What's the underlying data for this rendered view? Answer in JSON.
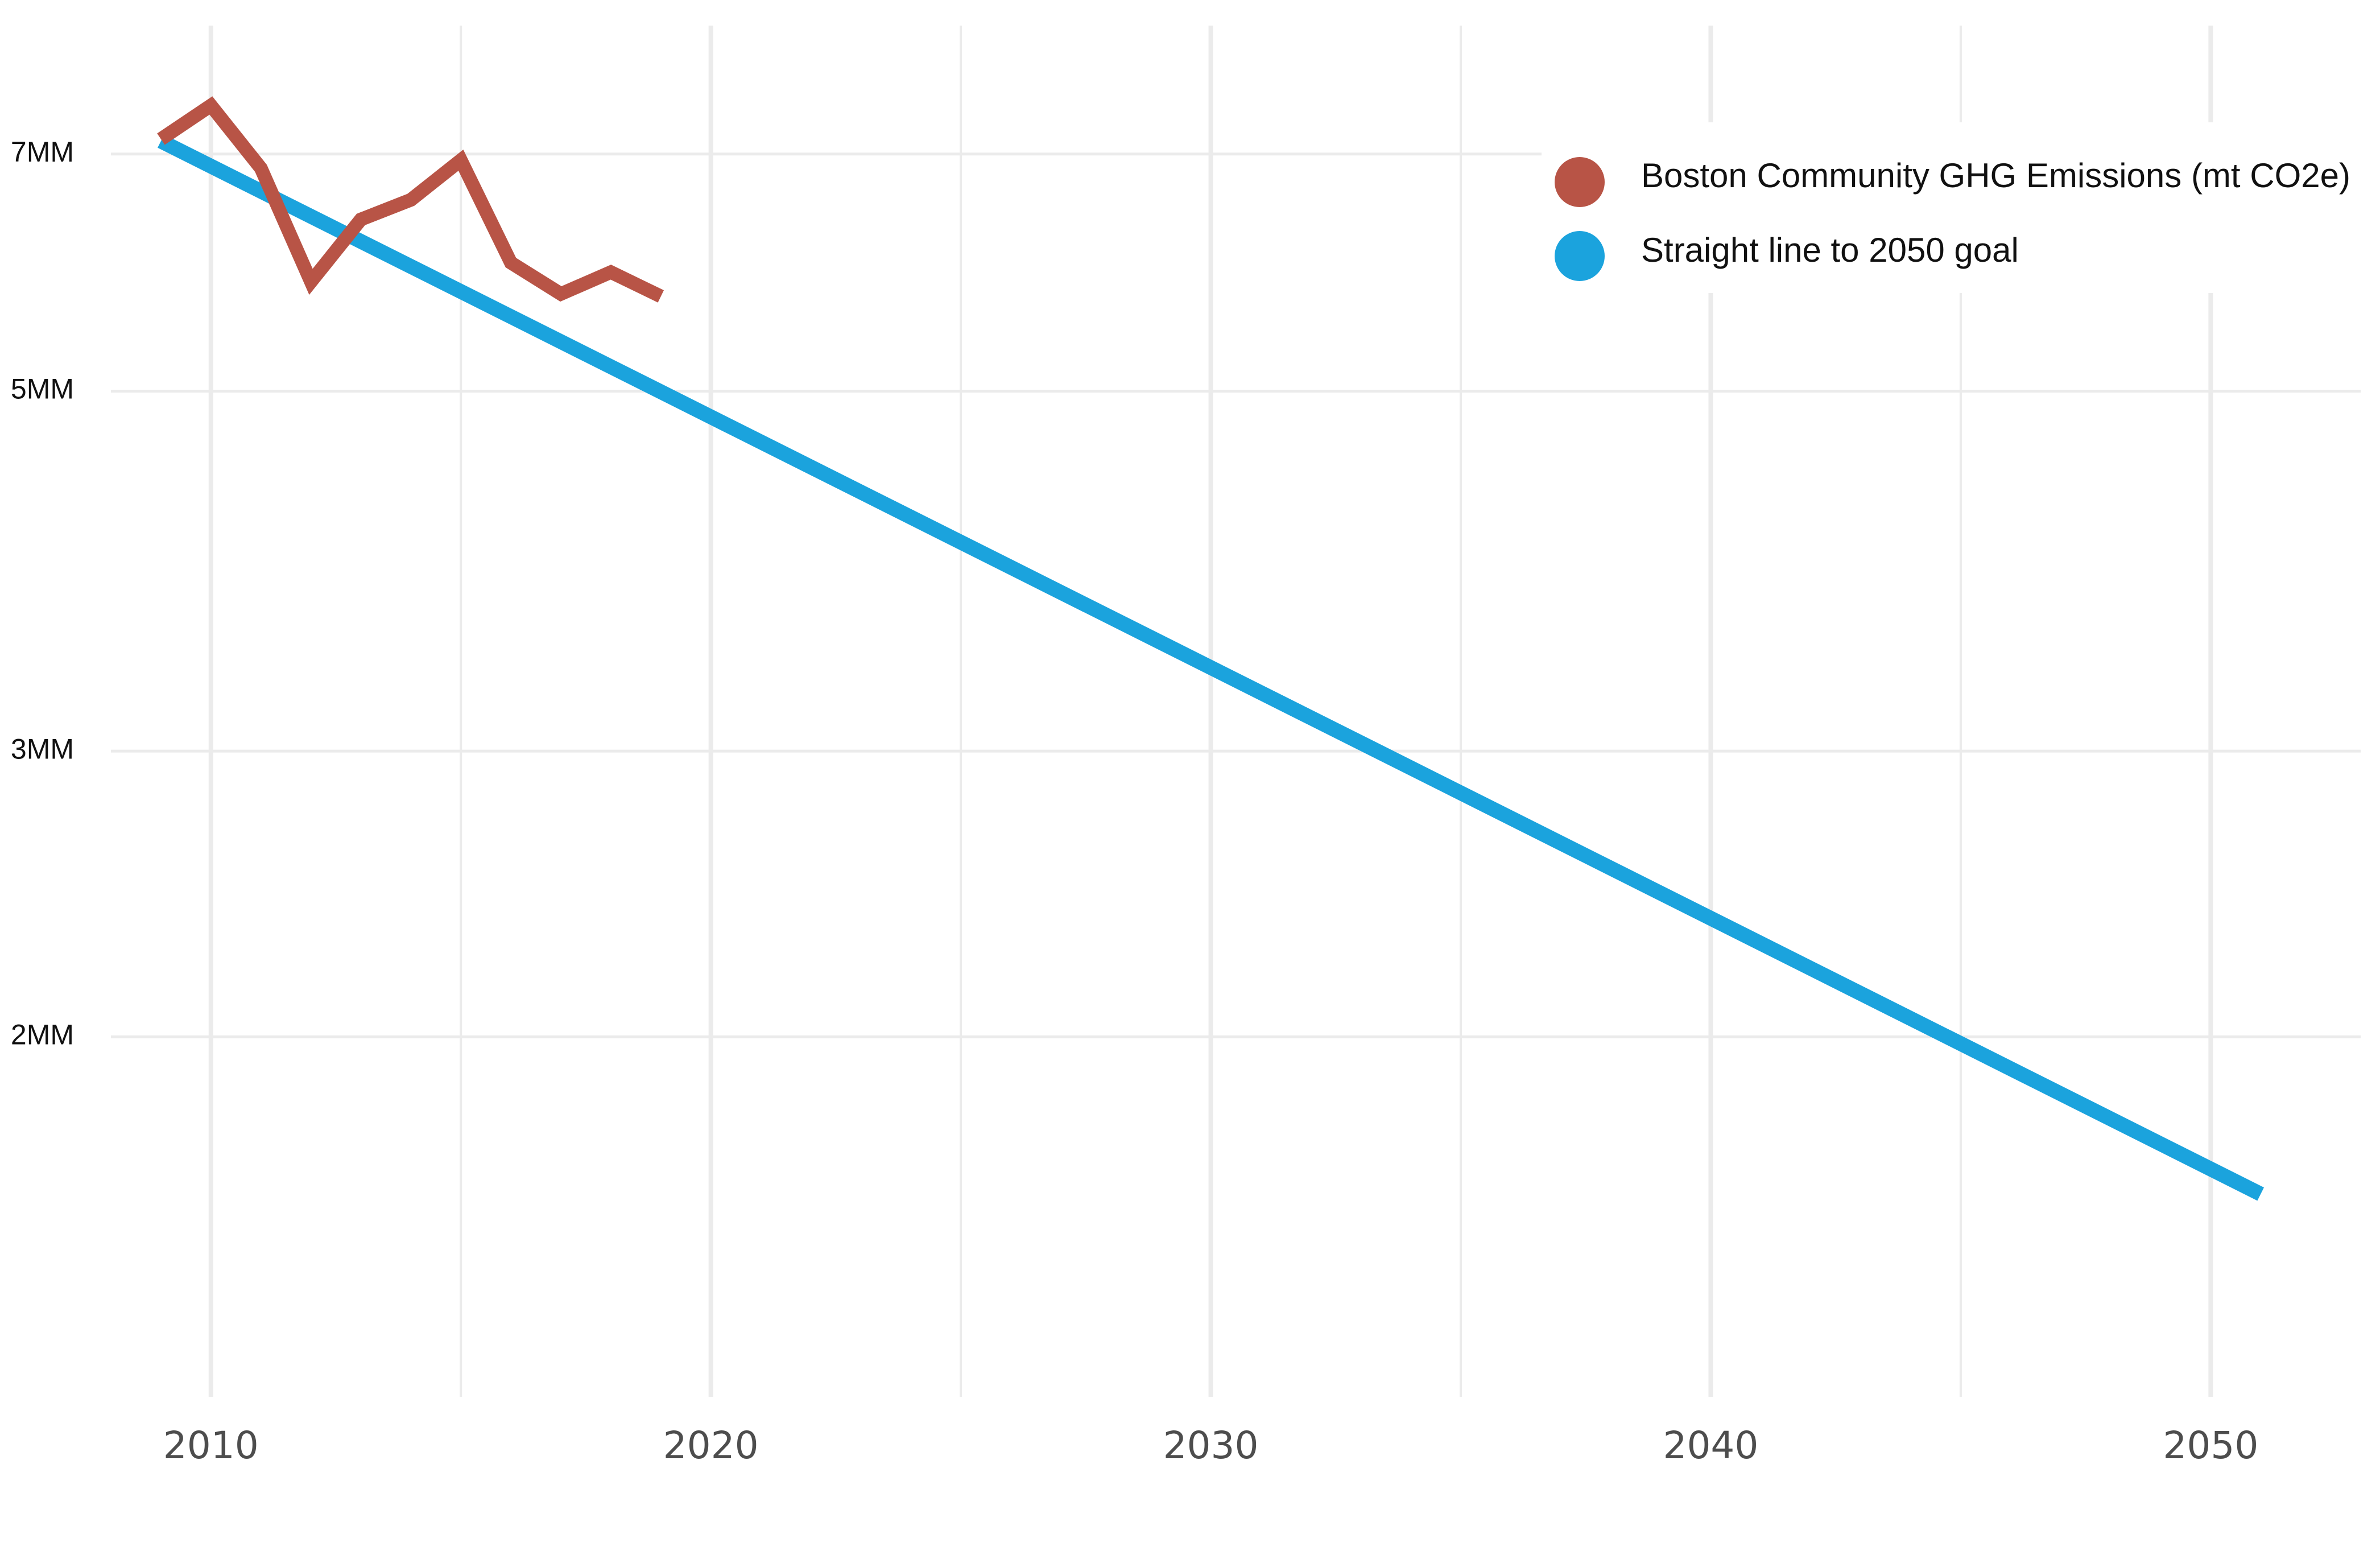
{
  "chart_data": {
    "type": "line",
    "title": "",
    "xlabel": "",
    "ylabel": "",
    "xlim": [
      2008,
      2053
    ],
    "y_scale": "log",
    "ylim": [
      1200000,
      8400000
    ],
    "grid": true,
    "legend_position": "top-right",
    "x_ticks": [
      {
        "value": 2010,
        "label": "2010"
      },
      {
        "value": 2020,
        "label": "2020"
      },
      {
        "value": 2030,
        "label": "2030"
      },
      {
        "value": 2040,
        "label": "2040"
      },
      {
        "value": 2050,
        "label": "2050"
      }
    ],
    "y_ticks": [
      {
        "value": 7000000,
        "label": "7MM"
      },
      {
        "value": 5000000,
        "label": "5MM"
      },
      {
        "value": 3000000,
        "label": "3MM"
      },
      {
        "value": 2000000,
        "label": "2MM"
      }
    ],
    "series": [
      {
        "name": "Boston Community GHG Emissions (mt CO2e)",
        "color": "#b85446",
        "x": [
          2009,
          2010,
          2011,
          2012,
          2013,
          2014,
          2015,
          2016,
          2017,
          2018,
          2019
        ],
        "y": [
          7150000,
          7500000,
          6860000,
          5840000,
          6380000,
          6560000,
          6940000,
          6000000,
          5740000,
          5920000,
          5720000
        ]
      },
      {
        "name": "Straight line to 2050 goal",
        "color": "#1ba3dd",
        "x": [
          2009,
          2051
        ],
        "y": [
          7130000,
          1600000
        ]
      }
    ]
  }
}
